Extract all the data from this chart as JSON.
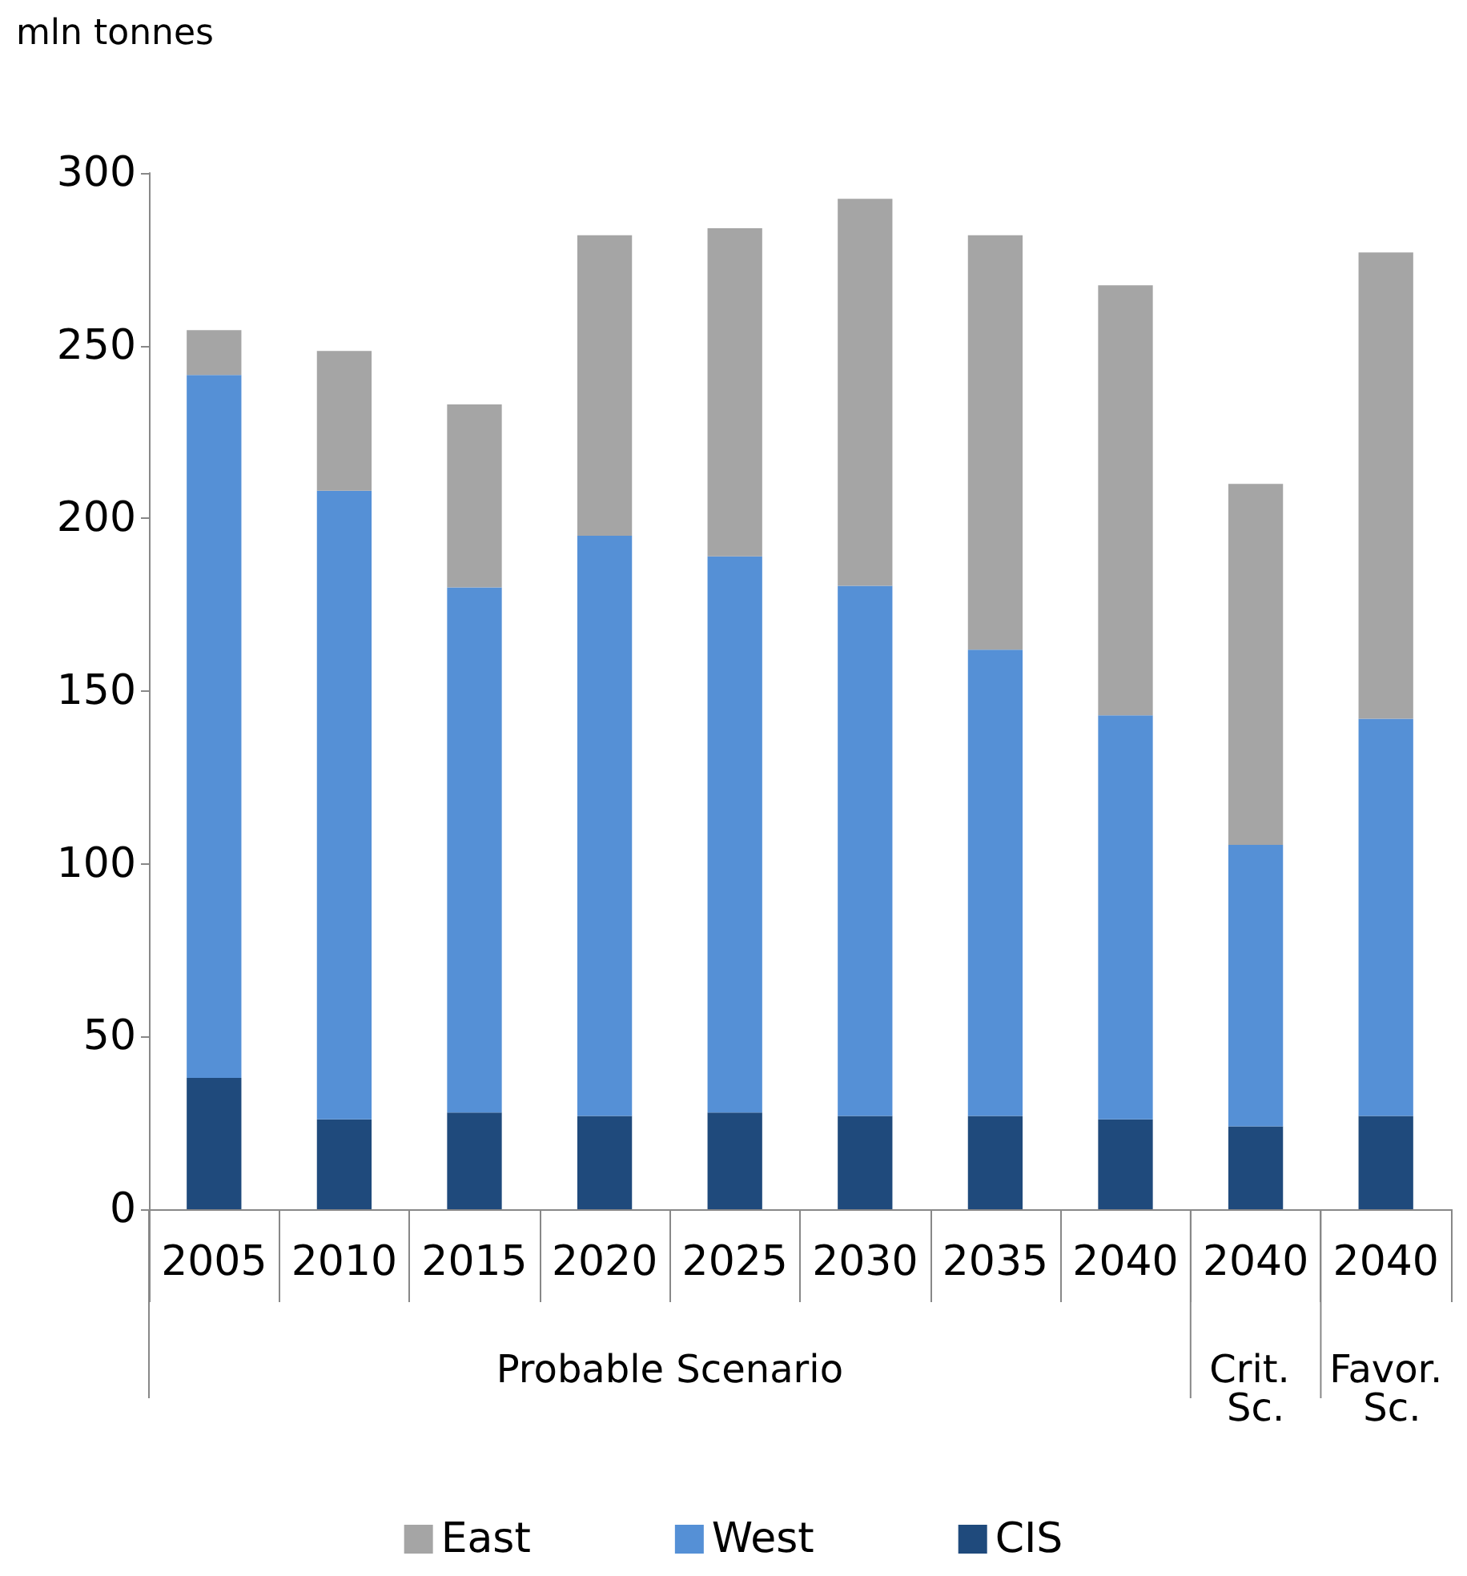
{
  "chart_data": {
    "type": "bar",
    "stacked": true,
    "ylabel": "mln tonnes",
    "categories": [
      "2005",
      "2010",
      "2015",
      "2020",
      "2025",
      "2030",
      "2035",
      "2040",
      "2040",
      "2040"
    ],
    "series": [
      {
        "name": "CIS",
        "color": "#1f4a7c",
        "values": [
          38,
          26,
          28,
          27,
          28,
          27,
          27,
          26,
          24,
          27
        ]
      },
      {
        "name": "West",
        "color": "#5590d6",
        "values": [
          203.5,
          182,
          152,
          168,
          161,
          153.5,
          135,
          117,
          81.5,
          115
        ]
      },
      {
        "name": "East",
        "color": "#a5a5a5",
        "values": [
          13,
          40.5,
          53,
          87,
          95,
          112,
          120,
          124.5,
          104.5,
          135
        ]
      }
    ],
    "ylim": [
      0,
      300
    ],
    "yticks": [
      0,
      50,
      100,
      150,
      200,
      250,
      300
    ],
    "grid": false,
    "legend": "bottom",
    "annotations": [
      "Probable Scenario",
      "Crit. Sc.",
      "Favor. Sc."
    ]
  }
}
